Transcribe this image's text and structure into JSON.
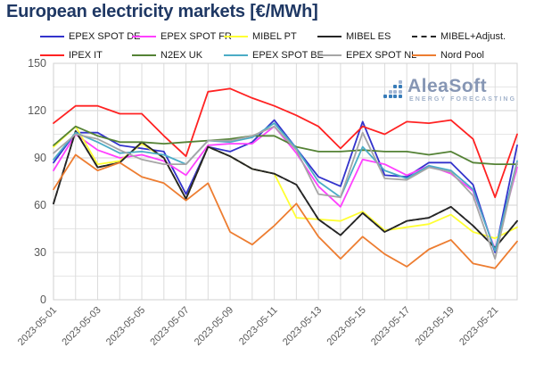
{
  "title": "European electricity markets [€/MWh]",
  "logo": {
    "name": "AleaSoft",
    "subtitle": "ENERGY FORECASTING"
  },
  "colors": {
    "title": "#1F3864",
    "grid_major": "#D3D3D3",
    "grid_minor": "#E6E6E6",
    "grid_vertical": "#DCDCDC",
    "plot_border": "#D0D0D0",
    "axis_text": "#595959",
    "logo_text": "#8091B0",
    "logo_sub": "#9EAFC9",
    "logo_dot_blue": "#2E75B6",
    "logo_dot_gray": "#9DB2D1"
  },
  "chart_data": {
    "type": "line",
    "title": "European electricity markets [€/MWh]",
    "xlabel": "",
    "ylabel": "",
    "ylim": [
      0,
      150
    ],
    "y_major_step": 30,
    "y_minor_step": 15,
    "grid": true,
    "legend_position": "top",
    "x": [
      "2023-05-01",
      "2023-05-02",
      "2023-05-03",
      "2023-05-04",
      "2023-05-05",
      "2023-05-06",
      "2023-05-07",
      "2023-05-08",
      "2023-05-09",
      "2023-05-10",
      "2023-05-11",
      "2023-05-12",
      "2023-05-13",
      "2023-05-14",
      "2023-05-15",
      "2023-05-16",
      "2023-05-17",
      "2023-05-18",
      "2023-05-19",
      "2023-05-20",
      "2023-05-21",
      "2023-05-22"
    ],
    "x_tick_labels": [
      "2023-05-01",
      "2023-05-03",
      "2023-05-05",
      "2023-05-07",
      "2023-05-09",
      "2023-05-11",
      "2023-05-13",
      "2023-05-15",
      "2023-05-17",
      "2023-05-19",
      "2023-05-21"
    ],
    "series": [
      {
        "name": "EPEX SPOT DE",
        "color": "#3333CC",
        "dash": false,
        "values": [
          87,
          106,
          106,
          98,
          96,
          94,
          67,
          97,
          94,
          100,
          114,
          96,
          78,
          72,
          113,
          79,
          78,
          87,
          87,
          73,
          30,
          98
        ]
      },
      {
        "name": "EPEX SPOT FR",
        "color": "#FF40FF",
        "dash": false,
        "values": [
          82,
          105,
          95,
          90,
          92,
          88,
          79,
          98,
          99,
          99,
          110,
          93,
          72,
          59,
          89,
          86,
          79,
          85,
          80,
          69,
          32,
          84
        ]
      },
      {
        "name": "MIBEL PT",
        "color": "#FFFF33",
        "dash": false,
        "values": [
          97,
          110,
          86,
          88,
          99,
          90,
          64,
          97,
          91,
          83,
          80,
          52,
          51,
          50,
          56,
          44,
          46,
          48,
          54,
          43,
          39,
          46
        ]
      },
      {
        "name": "MIBEL ES",
        "color": "#262626",
        "dash": false,
        "values": [
          61,
          107,
          84,
          87,
          100,
          90,
          64,
          97,
          91,
          83,
          80,
          73,
          51,
          41,
          55,
          43,
          50,
          52,
          59,
          47,
          33,
          50
        ]
      },
      {
        "name": "MIBEL+Adjust.",
        "color": "#262626",
        "dash": true,
        "values": [
          61,
          107,
          84,
          87,
          100,
          90,
          64,
          97,
          91,
          83,
          80,
          73,
          51,
          41,
          55,
          43,
          50,
          52,
          59,
          47,
          33,
          50
        ]
      },
      {
        "name": "IPEX IT",
        "color": "#FF2222",
        "dash": false,
        "values": [
          112,
          123,
          123,
          118,
          118,
          104,
          91,
          132,
          134,
          128,
          123,
          117,
          110,
          96,
          110,
          105,
          113,
          112,
          114,
          102,
          65,
          105
        ]
      },
      {
        "name": "N2EX UK",
        "color": "#548235",
        "dash": false,
        "values": [
          98,
          110,
          104,
          100,
          100,
          99,
          100,
          101,
          102,
          104,
          104,
          97,
          94,
          94,
          95,
          94,
          94,
          92,
          94,
          87,
          86,
          86
        ]
      },
      {
        "name": "EPEX SPOT BE",
        "color": "#4BACC6",
        "dash": false,
        "values": [
          89,
          106,
          100,
          93,
          94,
          92,
          86,
          101,
          100,
          103,
          112,
          96,
          75,
          65,
          97,
          82,
          77,
          85,
          82,
          70,
          31,
          88
        ]
      },
      {
        "name": "EPEX SPOT NL",
        "color": "#A6A6A6",
        "dash": false,
        "values": [
          93,
          105,
          102,
          95,
          89,
          86,
          86,
          101,
          101,
          104,
          110,
          95,
          67,
          65,
          106,
          77,
          76,
          84,
          81,
          66,
          26,
          87
        ]
      },
      {
        "name": "Nord Pool",
        "color": "#ED7D31",
        "dash": false,
        "values": [
          70,
          92,
          82,
          87,
          78,
          74,
          63,
          74,
          43,
          35,
          47,
          61,
          40,
          26,
          40,
          29,
          21,
          32,
          38,
          23,
          20,
          37
        ]
      }
    ],
    "legend_rows": [
      [
        0,
        1,
        2,
        3,
        4
      ],
      [
        5,
        6,
        7,
        8,
        9
      ]
    ]
  },
  "layout_values": {
    "y_ticks": [
      "0",
      "30",
      "60",
      "90",
      "120",
      "150"
    ]
  }
}
